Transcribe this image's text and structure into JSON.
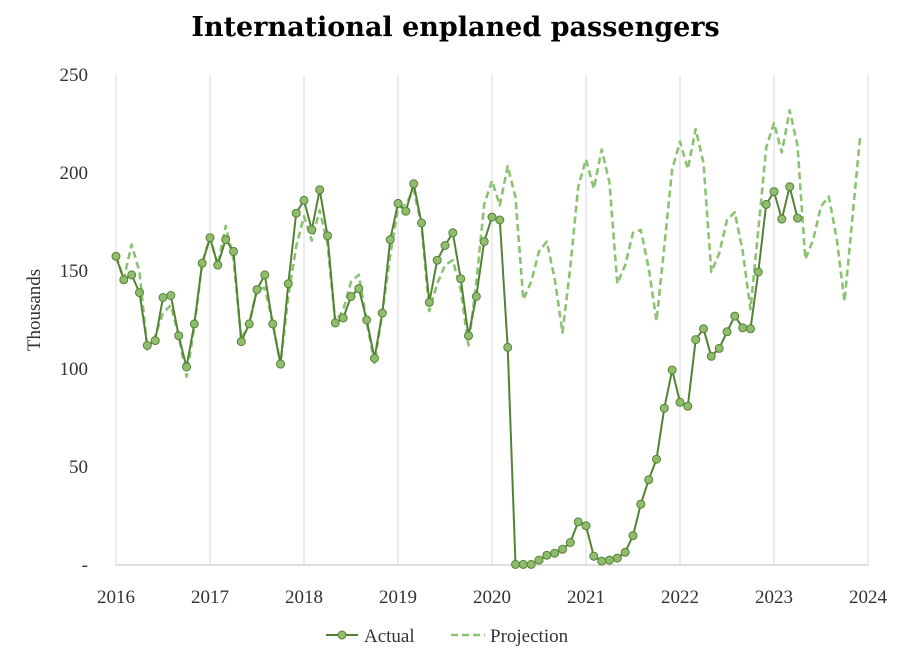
{
  "chart_data": {
    "type": "line",
    "title": "International enplaned passengers",
    "xlabel": "",
    "ylabel": "Thousands",
    "ylim": [
      0,
      250
    ],
    "xlim": [
      "2016-01",
      "2024-01"
    ],
    "y_ticks": [
      "-",
      "50",
      "100",
      "150",
      "200",
      "250"
    ],
    "x_ticks": [
      "2016",
      "2017",
      "2018",
      "2019",
      "2020",
      "2021",
      "2022",
      "2023",
      "2024"
    ],
    "grid": "vertical",
    "legend_position": "bottom",
    "colors": {
      "actual": "#548235",
      "actual_marker": "#8fbc6d",
      "projection": "#8dc274",
      "grid": "#d9d9d9"
    },
    "series": [
      {
        "name": "Actual",
        "style": "solid-with-markers",
        "start": "2016-01",
        "values": [
          157.5,
          145.5,
          148,
          139,
          112,
          114.5,
          136.5,
          137.5,
          117,
          101,
          123,
          154,
          167,
          153,
          166,
          160,
          114,
          123,
          140.5,
          148,
          123,
          102.5,
          143.5,
          179.5,
          186,
          171,
          191.5,
          168,
          123.5,
          126,
          137,
          141,
          125,
          105.5,
          128.5,
          166,
          184.5,
          180.5,
          194.5,
          174.5,
          134,
          155.5,
          163,
          169.5,
          146,
          117,
          137,
          165,
          177.5,
          176,
          111,
          0.3,
          0.3,
          0.3,
          2.5,
          5,
          6,
          8,
          11.5,
          22,
          20,
          4.5,
          2,
          2.5,
          3.5,
          6.5,
          15,
          31,
          43.5,
          54,
          80,
          99.5,
          83,
          81,
          115,
          120.5,
          106.5,
          110.5,
          119,
          127,
          121,
          120.5,
          149.5,
          184,
          190.5,
          176.5,
          193,
          177
        ]
      },
      {
        "name": "Projection",
        "style": "dashed",
        "start": "2016-01",
        "values": [
          157.5,
          146,
          163.5,
          149.5,
          110,
          117,
          128.5,
          132.5,
          117,
          96,
          121.5,
          154,
          167,
          153,
          173,
          156,
          115,
          123,
          140.5,
          141.5,
          123.5,
          102.5,
          137,
          162.5,
          178,
          165.5,
          181,
          164,
          124,
          130,
          144.5,
          148,
          124,
          103,
          128.5,
          158,
          182,
          184,
          191.5,
          173,
          129.5,
          143.5,
          153,
          155.5,
          140.5,
          112,
          144,
          184,
          196,
          183.5,
          203.5,
          187.5,
          135.5,
          144.5,
          160,
          165,
          146,
          118.5,
          152,
          193,
          207,
          192,
          212,
          195,
          143.5,
          153,
          169.5,
          171,
          151.5,
          124.5,
          162.5,
          202,
          216,
          202,
          222.5,
          205,
          149.5,
          159,
          176,
          180,
          160,
          130.5,
          171,
          213,
          225.5,
          210.5,
          232,
          214,
          156,
          166,
          183,
          188,
          166.5,
          134.5,
          176.5,
          219
        ]
      }
    ]
  }
}
